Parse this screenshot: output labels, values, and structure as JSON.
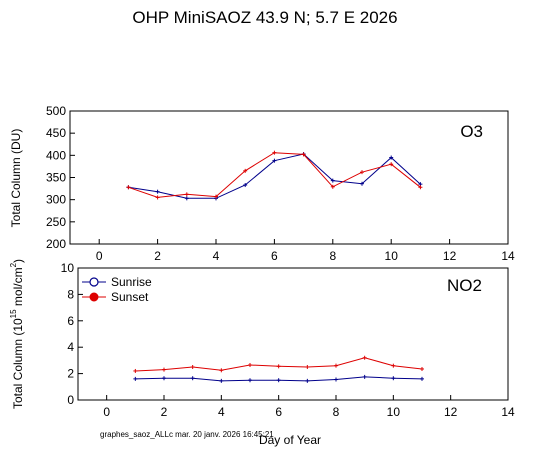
{
  "title": "OHP MiniSAOZ  43.9 N; 5.7 E   2026",
  "footer": "graphes_saoz_ALLc  mar. 20 janv. 2026 16:45:21",
  "colors": {
    "sunrise": "#00008b",
    "sunset": "#dd0000",
    "axes": "#000000"
  },
  "chart_data": [
    {
      "type": "line",
      "panel_label": "O3",
      "ylabel": "Total Column  (DU)",
      "xlabel": "",
      "xlim": [
        -1,
        14
      ],
      "ylim": [
        200,
        500
      ],
      "xticks": [
        0,
        2,
        4,
        6,
        8,
        10,
        12,
        14
      ],
      "yticks": [
        200,
        250,
        300,
        350,
        400,
        450,
        500
      ],
      "x": [
        1,
        2,
        3,
        4,
        5,
        6,
        7,
        8,
        9,
        10,
        11
      ],
      "series": [
        {
          "name": "Sunrise",
          "color": "#00008b",
          "marker": "plus",
          "values": [
            328,
            318,
            303,
            303,
            333,
            388,
            403,
            343,
            336,
            395,
            335
          ]
        },
        {
          "name": "Sunset",
          "color": "#dd0000",
          "marker": "plus",
          "values": [
            328,
            305,
            312,
            307,
            365,
            406,
            402,
            329,
            362,
            380,
            328
          ]
        }
      ]
    },
    {
      "type": "line",
      "panel_label": "NO2",
      "ylabel": "Total Column (10",
      "ylabel_sup": "15",
      "ylabel_tail": " mol/cm",
      "ylabel_sup2": "2",
      "ylabel_end": ")",
      "xlabel": "Day of Year",
      "xlim": [
        -1,
        14
      ],
      "ylim": [
        0,
        10
      ],
      "xticks": [
        0,
        2,
        4,
        6,
        8,
        10,
        12,
        14
      ],
      "yticks": [
        0,
        2,
        4,
        6,
        8,
        10
      ],
      "legend": "top-left",
      "x": [
        1,
        2,
        3,
        4,
        5,
        6,
        7,
        8,
        9,
        10,
        11
      ],
      "series": [
        {
          "name": "Sunrise",
          "color": "#00008b",
          "marker": "plus",
          "values": [
            1.6,
            1.65,
            1.65,
            1.45,
            1.5,
            1.5,
            1.45,
            1.55,
            1.75,
            1.65,
            1.6
          ]
        },
        {
          "name": "Sunset",
          "color": "#dd0000",
          "marker": "plus",
          "values": [
            2.2,
            2.3,
            2.5,
            2.25,
            2.65,
            2.55,
            2.5,
            2.6,
            3.2,
            2.6,
            2.35
          ]
        }
      ]
    }
  ]
}
